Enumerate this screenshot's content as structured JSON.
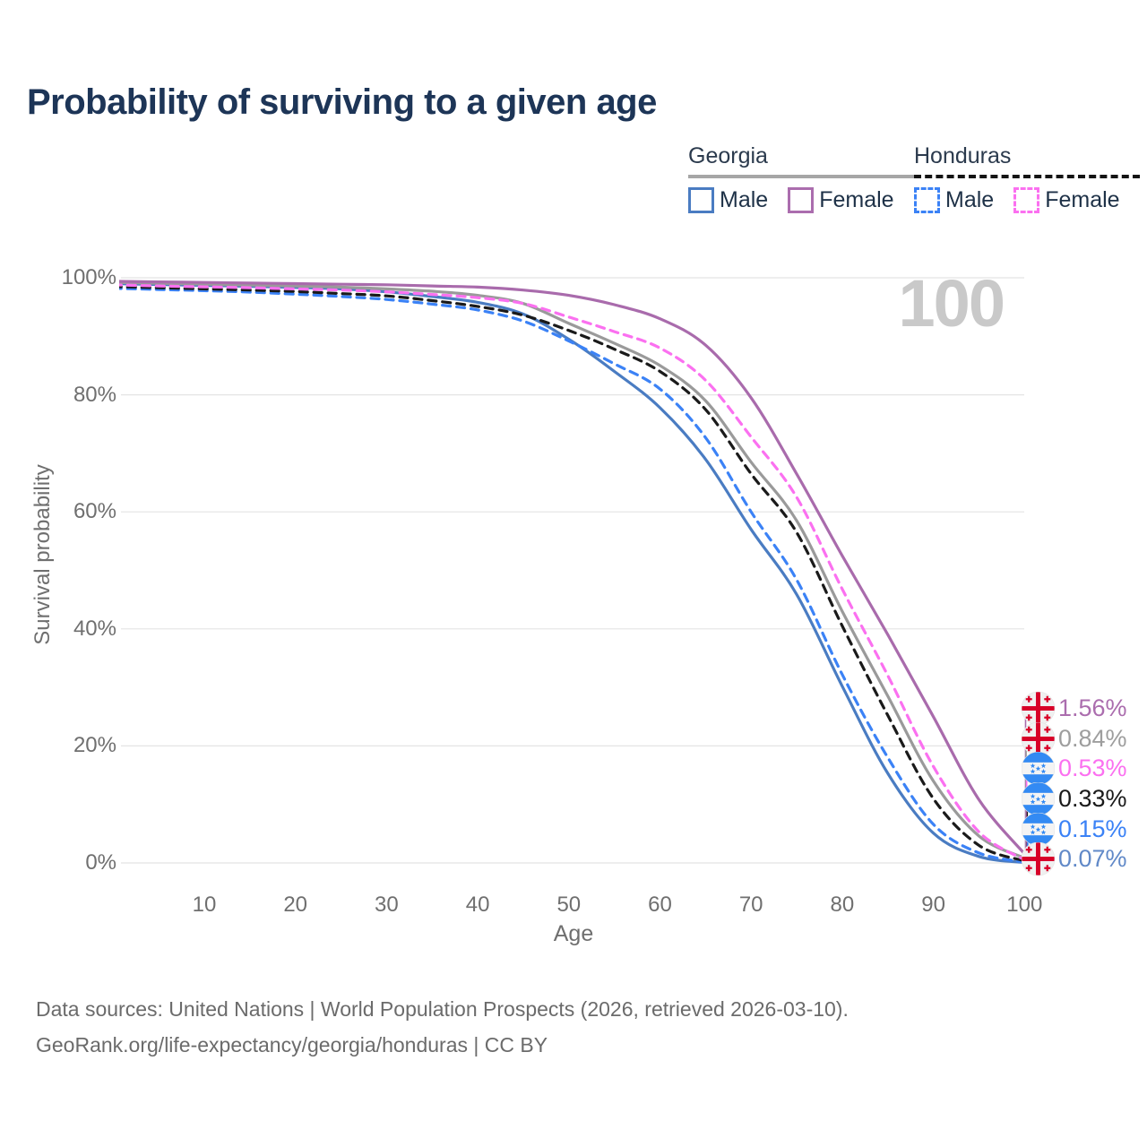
{
  "title": "Probability of surviving to a given age",
  "legend": {
    "groups": [
      {
        "label": "Georgia",
        "line_color": "#a6a6a6",
        "line_style": "solid",
        "items": [
          {
            "label": "Male",
            "color": "#4a7cc2",
            "dashed": false
          },
          {
            "label": "Female",
            "color": "#ab6dae",
            "dashed": false
          }
        ]
      },
      {
        "label": "Honduras",
        "line_color": "#141414",
        "line_style": "dashed",
        "items": [
          {
            "label": "Male",
            "color": "#3b82f6",
            "dashed": true
          },
          {
            "label": "Female",
            "color": "#fb70f0",
            "dashed": true
          }
        ]
      }
    ]
  },
  "watermark": "100",
  "chart_data": {
    "type": "line",
    "title": "Probability of surviving to a given age",
    "xlabel": "Age",
    "ylabel": "Survival probability",
    "xlim": [
      0,
      100
    ],
    "ylim": [
      0,
      100
    ],
    "grid": "horizontal",
    "x_ticks": [
      10,
      20,
      30,
      40,
      50,
      60,
      70,
      80,
      90,
      100
    ],
    "y_ticks": [
      {
        "value": 0,
        "label": "0%"
      },
      {
        "value": 20,
        "label": "20%"
      },
      {
        "value": 40,
        "label": "40%"
      },
      {
        "value": 60,
        "label": "60%"
      },
      {
        "value": 80,
        "label": "80%"
      },
      {
        "value": 100,
        "label": "100%"
      }
    ],
    "x": [
      0,
      5,
      10,
      15,
      20,
      25,
      30,
      35,
      40,
      45,
      50,
      55,
      60,
      65,
      70,
      75,
      80,
      85,
      90,
      95,
      100
    ],
    "series": [
      {
        "name": "Georgia Male",
        "country": "Georgia",
        "sex": "Male",
        "color": "#4a7cc2",
        "dashed": false,
        "values": [
          99.0,
          98.85,
          98.7,
          98.55,
          98.35,
          98.1,
          97.6,
          96.8,
          95.8,
          93.8,
          89.5,
          84.0,
          77.8,
          69.0,
          57.0,
          45.9,
          30.2,
          15.3,
          5.1,
          1.1,
          0.07
        ]
      },
      {
        "name": "Honduras Male",
        "country": "Honduras",
        "sex": "Male",
        "color": "#3b82f6",
        "dashed": true,
        "values": [
          98.2,
          98.0,
          97.8,
          97.55,
          97.2,
          96.8,
          96.3,
          95.5,
          94.5,
          92.6,
          89.2,
          85.3,
          81.0,
          72.7,
          60.0,
          48.4,
          32.2,
          18.0,
          6.6,
          1.7,
          0.15
        ]
      },
      {
        "name": "Honduras",
        "country": "Honduras",
        "sex": "Both",
        "color": "#1a1a1a",
        "dashed": true,
        "values": [
          98.5,
          98.3,
          98.1,
          97.9,
          97.65,
          97.3,
          96.9,
          96.1,
          95.1,
          93.6,
          91.0,
          87.8,
          84.0,
          77.5,
          66.5,
          56.5,
          40.5,
          25.2,
          11.0,
          3.0,
          0.33
        ]
      },
      {
        "name": "Georgia",
        "country": "Georgia",
        "sex": "Both",
        "color": "#9a9a9a",
        "dashed": false,
        "values": [
          99.2,
          99.05,
          98.9,
          98.75,
          98.6,
          98.4,
          98.1,
          97.7,
          97.0,
          95.6,
          92.2,
          88.8,
          85.0,
          79.0,
          68.5,
          58.5,
          43.0,
          28.5,
          14.0,
          4.6,
          0.84
        ]
      },
      {
        "name": "Honduras Female",
        "country": "Honduras",
        "sex": "Female",
        "color": "#fb70f0",
        "dashed": true,
        "values": [
          98.8,
          98.6,
          98.45,
          98.3,
          98.1,
          97.9,
          97.6,
          97.15,
          96.6,
          95.6,
          93.3,
          90.8,
          88.0,
          82.5,
          72.8,
          62.5,
          46.8,
          32.0,
          16.5,
          5.3,
          0.53
        ]
      },
      {
        "name": "Georgia Female",
        "country": "Georgia",
        "sex": "Female",
        "color": "#a96bac",
        "dashed": false,
        "values": [
          99.4,
          99.3,
          99.2,
          99.1,
          99.0,
          98.9,
          98.8,
          98.6,
          98.4,
          97.9,
          97.0,
          95.4,
          93.0,
          88.5,
          79.5,
          66.5,
          52.5,
          39.0,
          25.0,
          10.8,
          1.56
        ]
      }
    ]
  },
  "endpoints": [
    {
      "value": "1.56%",
      "flag": "georgia",
      "series": "Georgia Female",
      "color": "#ab6dae"
    },
    {
      "value": "0.84%",
      "flag": "georgia",
      "series": "Georgia",
      "color": "#9e9e9e"
    },
    {
      "value": "0.53%",
      "flag": "honduras",
      "series": "Honduras Female",
      "color": "#fb70f0"
    },
    {
      "value": "0.33%",
      "flag": "honduras",
      "series": "Honduras",
      "color": "#1a1a1a"
    },
    {
      "value": "0.15%",
      "flag": "honduras",
      "series": "Honduras Male",
      "color": "#3b82f6"
    },
    {
      "value": "0.07%",
      "flag": "georgia",
      "series": "Georgia Male",
      "color": "#6189c8"
    }
  ],
  "flag_colors": {
    "georgia_bg": "#f0f0f0",
    "georgia_red": "#d80027",
    "honduras_blue": "#338af3",
    "honduras_white": "#f4f4f4"
  },
  "footer": {
    "line1": "Data sources: United Nations | World Population Prospects (2026, retrieved 2026-03-10).",
    "line2": "GeoRank.org/life-expectancy/georgia/honduras | CC BY"
  }
}
